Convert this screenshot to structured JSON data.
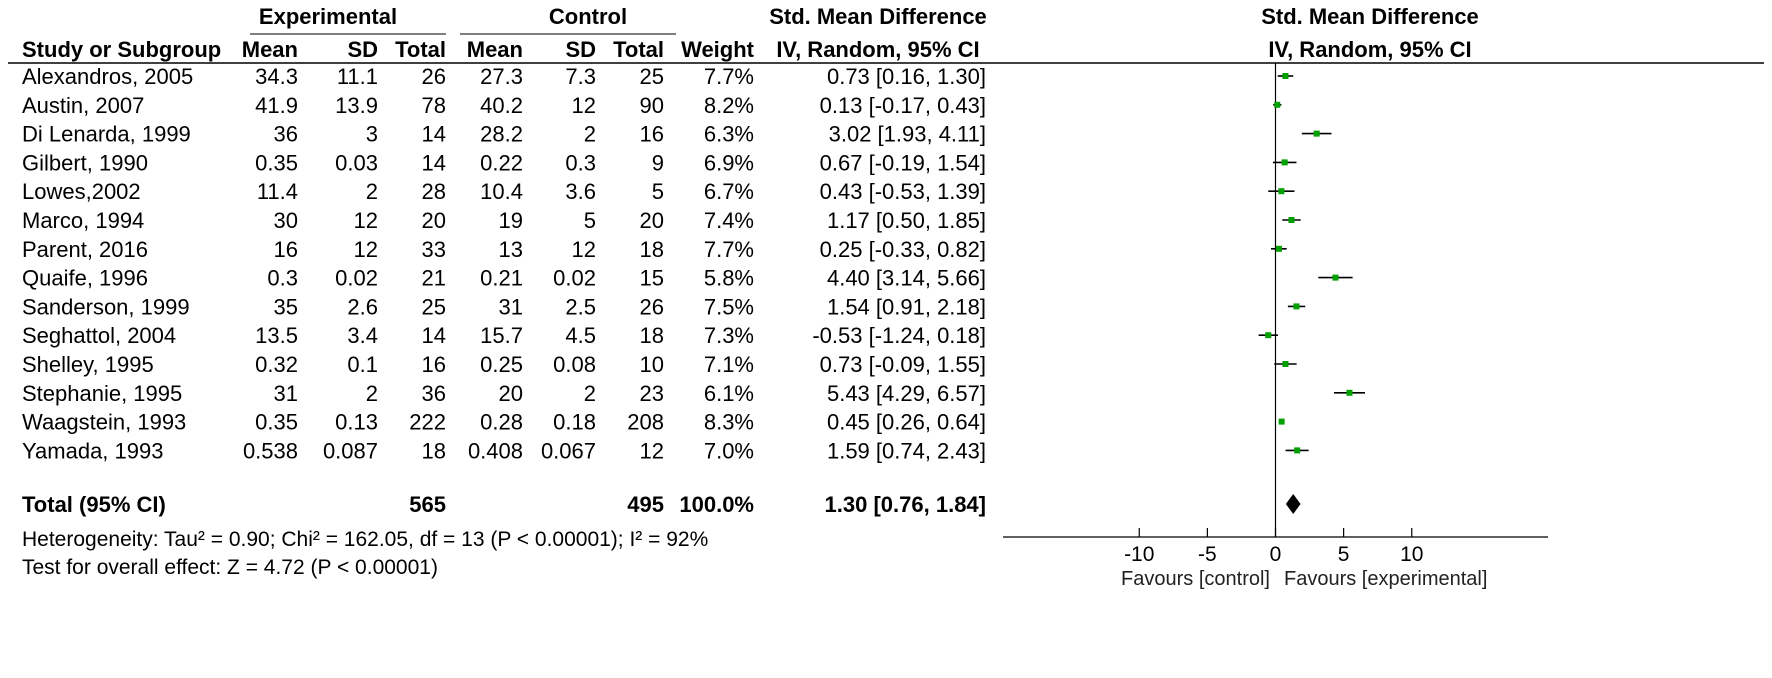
{
  "headers": {
    "experimental": "Experimental",
    "control": "Control",
    "smd": "Std. Mean Difference",
    "study": "Study or Subgroup",
    "mean": "Mean",
    "sd": "SD",
    "total": "Total",
    "weight": "Weight",
    "method": "IV, Random, 95% CI",
    "plot_title": "Std. Mean Difference",
    "plot_method": "IV, Random, 95% CI"
  },
  "total_row": {
    "label": "Total (95% CI)",
    "exp_total": "565",
    "ctl_total": "495",
    "weight": "100.0%",
    "ci_text": "1.30 [0.76, 1.84]"
  },
  "heterogeneity": "Heterogeneity: Tau² = 0.90; Chi² = 162.05, df = 13 (P < 0.00001); I² = 92%",
  "overall_effect": "Test for overall effect: Z = 4.72 (P < 0.00001)",
  "favours_left": "Favours [control]",
  "favours_right": "Favours [experimental]",
  "colors": {
    "point": "#00a000",
    "line": "#000000"
  },
  "chart_data": {
    "type": "forest",
    "xlim": [
      -10,
      10
    ],
    "display_range": [
      -20,
      20
    ],
    "xticks": [
      -10,
      -5,
      0,
      5,
      10
    ],
    "studies": [
      {
        "name": "Alexandros, 2005",
        "exp_mean": "34.3",
        "exp_sd": "11.1",
        "exp_n": "26",
        "ctl_mean": "27.3",
        "ctl_sd": "7.3",
        "ctl_n": "25",
        "weight": "7.7%",
        "ci_text": "0.73 [0.16, 1.30]",
        "smd": 0.73,
        "lo": 0.16,
        "hi": 1.3
      },
      {
        "name": "Austin, 2007",
        "exp_mean": "41.9",
        "exp_sd": "13.9",
        "exp_n": "78",
        "ctl_mean": "40.2",
        "ctl_sd": "12",
        "ctl_n": "90",
        "weight": "8.2%",
        "ci_text": "0.13 [-0.17, 0.43]",
        "smd": 0.13,
        "lo": -0.17,
        "hi": 0.43
      },
      {
        "name": "Di Lenarda, 1999",
        "exp_mean": "36",
        "exp_sd": "3",
        "exp_n": "14",
        "ctl_mean": "28.2",
        "ctl_sd": "2",
        "ctl_n": "16",
        "weight": "6.3%",
        "ci_text": "3.02 [1.93, 4.11]",
        "smd": 3.02,
        "lo": 1.93,
        "hi": 4.11
      },
      {
        "name": "Gilbert, 1990",
        "exp_mean": "0.35",
        "exp_sd": "0.03",
        "exp_n": "14",
        "ctl_mean": "0.22",
        "ctl_sd": "0.3",
        "ctl_n": "9",
        "weight": "6.9%",
        "ci_text": "0.67 [-0.19, 1.54]",
        "smd": 0.67,
        "lo": -0.19,
        "hi": 1.54
      },
      {
        "name": "Lowes,2002",
        "exp_mean": "11.4",
        "exp_sd": "2",
        "exp_n": "28",
        "ctl_mean": "10.4",
        "ctl_sd": "3.6",
        "ctl_n": "5",
        "weight": "6.7%",
        "ci_text": "0.43 [-0.53, 1.39]",
        "smd": 0.43,
        "lo": -0.53,
        "hi": 1.39
      },
      {
        "name": "Marco, 1994",
        "exp_mean": "30",
        "exp_sd": "12",
        "exp_n": "20",
        "ctl_mean": "19",
        "ctl_sd": "5",
        "ctl_n": "20",
        "weight": "7.4%",
        "ci_text": "1.17 [0.50, 1.85]",
        "smd": 1.17,
        "lo": 0.5,
        "hi": 1.85
      },
      {
        "name": "Parent, 2016",
        "exp_mean": "16",
        "exp_sd": "12",
        "exp_n": "33",
        "ctl_mean": "13",
        "ctl_sd": "12",
        "ctl_n": "18",
        "weight": "7.7%",
        "ci_text": "0.25 [-0.33, 0.82]",
        "smd": 0.25,
        "lo": -0.33,
        "hi": 0.82
      },
      {
        "name": "Quaife, 1996",
        "exp_mean": "0.3",
        "exp_sd": "0.02",
        "exp_n": "21",
        "ctl_mean": "0.21",
        "ctl_sd": "0.02",
        "ctl_n": "15",
        "weight": "5.8%",
        "ci_text": "4.40 [3.14, 5.66]",
        "smd": 4.4,
        "lo": 3.14,
        "hi": 5.66
      },
      {
        "name": "Sanderson, 1999",
        "exp_mean": "35",
        "exp_sd": "2.6",
        "exp_n": "25",
        "ctl_mean": "31",
        "ctl_sd": "2.5",
        "ctl_n": "26",
        "weight": "7.5%",
        "ci_text": "1.54 [0.91, 2.18]",
        "smd": 1.54,
        "lo": 0.91,
        "hi": 2.18
      },
      {
        "name": "Seghattol, 2004",
        "exp_mean": "13.5",
        "exp_sd": "3.4",
        "exp_n": "14",
        "ctl_mean": "15.7",
        "ctl_sd": "4.5",
        "ctl_n": "18",
        "weight": "7.3%",
        "ci_text": "-0.53 [-1.24, 0.18]",
        "smd": -0.53,
        "lo": -1.24,
        "hi": 0.18
      },
      {
        "name": "Shelley, 1995",
        "exp_mean": "0.32",
        "exp_sd": "0.1",
        "exp_n": "16",
        "ctl_mean": "0.25",
        "ctl_sd": "0.08",
        "ctl_n": "10",
        "weight": "7.1%",
        "ci_text": "0.73 [-0.09, 1.55]",
        "smd": 0.73,
        "lo": -0.09,
        "hi": 1.55
      },
      {
        "name": "Stephanie, 1995",
        "exp_mean": "31",
        "exp_sd": "2",
        "exp_n": "36",
        "ctl_mean": "20",
        "ctl_sd": "2",
        "ctl_n": "23",
        "weight": "6.1%",
        "ci_text": "5.43 [4.29, 6.57]",
        "smd": 5.43,
        "lo": 4.29,
        "hi": 6.57
      },
      {
        "name": "Waagstein, 1993",
        "exp_mean": "0.35",
        "exp_sd": "0.13",
        "exp_n": "222",
        "ctl_mean": "0.28",
        "ctl_sd": "0.18",
        "ctl_n": "208",
        "weight": "8.3%",
        "ci_text": "0.45 [0.26, 0.64]",
        "smd": 0.45,
        "lo": 0.26,
        "hi": 0.64
      },
      {
        "name": "Yamada, 1993",
        "exp_mean": "0.538",
        "exp_sd": "0.087",
        "exp_n": "18",
        "ctl_mean": "0.408",
        "ctl_sd": "0.067",
        "ctl_n": "12",
        "weight": "7.0%",
        "ci_text": "1.59 [0.74, 2.43]",
        "smd": 1.59,
        "lo": 0.74,
        "hi": 2.43
      }
    ],
    "pooled": {
      "smd": 1.3,
      "lo": 0.76,
      "hi": 1.84
    }
  }
}
